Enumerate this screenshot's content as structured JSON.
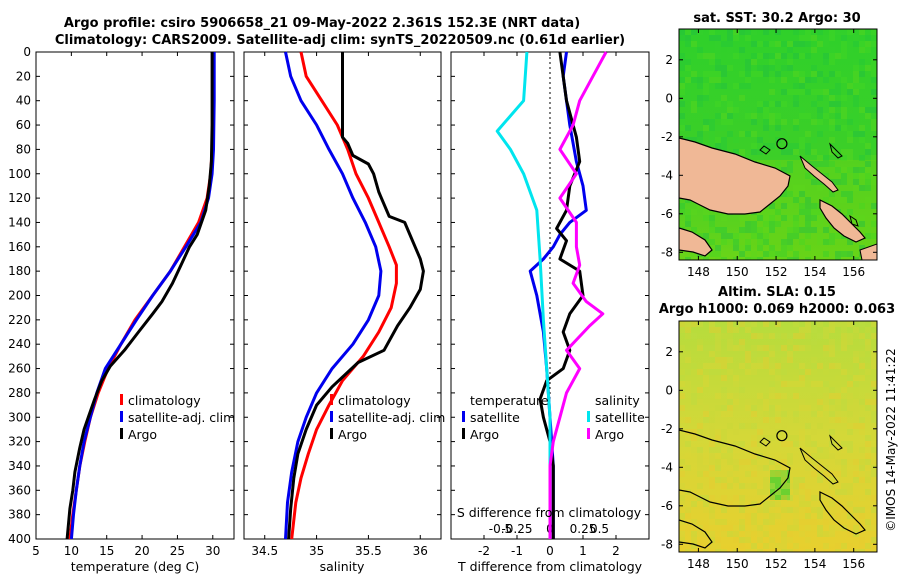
{
  "header": {
    "line1": "Argo profile: csiro 5906658_21 09-May-2022 2.361S 152.3E (NRT data)",
    "line2": "Climatology: CARS2009. Satellite-adj clim: synTS_20220509.nc (0.61d earlier)"
  },
  "credit": "©IMOS 14-May-2022 11:41:22",
  "colors": {
    "climatology": "#ff0000",
    "satellite": "#0000ee",
    "argo": "#000000",
    "s_satellite": "#00e5ee",
    "s_diff": "#ff00ff",
    "land": "#f0b896"
  },
  "chart_data": [
    {
      "id": "temperature",
      "type": "line",
      "xlabel": "temperature (deg C)",
      "xlim": [
        5,
        33
      ],
      "xticks": [
        5,
        10,
        15,
        20,
        25,
        30
      ],
      "ylim": [
        0,
        400
      ],
      "yticks": [
        0,
        20,
        40,
        60,
        80,
        100,
        120,
        140,
        160,
        180,
        200,
        220,
        240,
        260,
        280,
        300,
        320,
        340,
        360,
        380,
        400
      ],
      "legend": [
        "climatology",
        "satellite-adj. clim",
        "Argo"
      ],
      "series": [
        {
          "name": "climatology",
          "color": "#ff0000",
          "points": [
            [
              30,
              0
            ],
            [
              30,
              40
            ],
            [
              29.9,
              80
            ],
            [
              29.7,
              100
            ],
            [
              29.2,
              120
            ],
            [
              28,
              140
            ],
            [
              26,
              160
            ],
            [
              24,
              180
            ],
            [
              21.5,
              200
            ],
            [
              19,
              220
            ],
            [
              17,
              240
            ],
            [
              15.2,
              260
            ],
            [
              13.8,
              280
            ],
            [
              12.7,
              300
            ],
            [
              11.9,
              320
            ],
            [
              11.2,
              340
            ],
            [
              10.7,
              360
            ],
            [
              10.2,
              380
            ],
            [
              9.8,
              400
            ]
          ]
        },
        {
          "name": "satellite-adj. clim",
          "color": "#0000ee",
          "points": [
            [
              30.2,
              0
            ],
            [
              30.2,
              40
            ],
            [
              30.1,
              80
            ],
            [
              29.9,
              100
            ],
            [
              29.4,
              120
            ],
            [
              28.3,
              140
            ],
            [
              26.2,
              160
            ],
            [
              24,
              180
            ],
            [
              21.5,
              200
            ],
            [
              19.2,
              220
            ],
            [
              17,
              240
            ],
            [
              14.8,
              260
            ],
            [
              13.6,
              280
            ],
            [
              12.7,
              300
            ],
            [
              11.8,
              320
            ],
            [
              11.2,
              340
            ],
            [
              10.7,
              360
            ],
            [
              10.3,
              380
            ],
            [
              10,
              400
            ]
          ]
        },
        {
          "name": "Argo",
          "color": "#000000",
          "points": [
            [
              29.9,
              0
            ],
            [
              29.9,
              60
            ],
            [
              29.8,
              90
            ],
            [
              29.5,
              110
            ],
            [
              29,
              130
            ],
            [
              27.8,
              150
            ],
            [
              26.7,
              160
            ],
            [
              25.5,
              175
            ],
            [
              24.3,
              190
            ],
            [
              22.8,
              205
            ],
            [
              21.5,
              215
            ],
            [
              19.5,
              230
            ],
            [
              17.5,
              245
            ],
            [
              15.5,
              258
            ],
            [
              14.3,
              270
            ],
            [
              13.3,
              285
            ],
            [
              12.4,
              300
            ],
            [
              11.8,
              310
            ],
            [
              11.2,
              325
            ],
            [
              10.5,
              345
            ],
            [
              10.2,
              360
            ],
            [
              9.8,
              375
            ],
            [
              9.4,
              400
            ]
          ]
        }
      ]
    },
    {
      "id": "salinity",
      "type": "line",
      "xlabel": "salinity",
      "xlim": [
        34.3,
        36.2
      ],
      "xticks": [
        34.5,
        35,
        35.5,
        36
      ],
      "ylim": [
        0,
        400
      ],
      "legend": [
        "climatology",
        "satellite-adj. clim",
        "Argo"
      ],
      "series": [
        {
          "name": "climatology",
          "color": "#ff0000",
          "points": [
            [
              34.85,
              0
            ],
            [
              34.9,
              20
            ],
            [
              35.05,
              40
            ],
            [
              35.2,
              60
            ],
            [
              35.3,
              80
            ],
            [
              35.38,
              100
            ],
            [
              35.5,
              120
            ],
            [
              35.6,
              140
            ],
            [
              35.7,
              160
            ],
            [
              35.77,
              175
            ],
            [
              35.77,
              190
            ],
            [
              35.72,
              210
            ],
            [
              35.6,
              230
            ],
            [
              35.45,
              250
            ],
            [
              35.25,
              270
            ],
            [
              35.12,
              290
            ],
            [
              35.0,
              310
            ],
            [
              34.92,
              330
            ],
            [
              34.85,
              350
            ],
            [
              34.8,
              370
            ],
            [
              34.76,
              400
            ]
          ]
        },
        {
          "name": "satellite-adj. clim",
          "color": "#0000ee",
          "points": [
            [
              34.7,
              0
            ],
            [
              34.75,
              20
            ],
            [
              34.85,
              40
            ],
            [
              35.0,
              60
            ],
            [
              35.12,
              80
            ],
            [
              35.25,
              100
            ],
            [
              35.35,
              120
            ],
            [
              35.47,
              140
            ],
            [
              35.57,
              160
            ],
            [
              35.62,
              180
            ],
            [
              35.6,
              200
            ],
            [
              35.5,
              220
            ],
            [
              35.35,
              240
            ],
            [
              35.15,
              260
            ],
            [
              35.0,
              280
            ],
            [
              34.9,
              300
            ],
            [
              34.82,
              320
            ],
            [
              34.76,
              345
            ],
            [
              34.72,
              370
            ],
            [
              34.7,
              400
            ]
          ]
        },
        {
          "name": "Argo",
          "color": "#000000",
          "points": [
            [
              35.25,
              0
            ],
            [
              35.25,
              70
            ],
            [
              35.3,
              75
            ],
            [
              35.35,
              85
            ],
            [
              35.5,
              92
            ],
            [
              35.55,
              100
            ],
            [
              35.6,
              115
            ],
            [
              35.7,
              135
            ],
            [
              35.85,
              140
            ],
            [
              35.9,
              150
            ],
            [
              35.95,
              160
            ],
            [
              36.0,
              170
            ],
            [
              36.03,
              180
            ],
            [
              36.0,
              195
            ],
            [
              35.9,
              210
            ],
            [
              35.78,
              225
            ],
            [
              35.65,
              245
            ],
            [
              35.4,
              255
            ],
            [
              35.15,
              275
            ],
            [
              35.0,
              290
            ],
            [
              34.9,
              310
            ],
            [
              34.82,
              330
            ],
            [
              34.78,
              350
            ],
            [
              34.75,
              375
            ],
            [
              34.73,
              400
            ]
          ]
        }
      ]
    },
    {
      "id": "differences",
      "type": "line",
      "xlabel": "T difference from climatology",
      "xlabel_top": "S difference from climatology",
      "xlim": [
        -3,
        3
      ],
      "xticks": [
        -2,
        -1,
        0,
        1,
        2
      ],
      "s_ticks": [
        {
          "label": "-0.5",
          "t": -1.5
        },
        {
          "label": "-0.25",
          "t": -1
        },
        {
          "label": "0",
          "t": 0
        },
        {
          "label": "0.25",
          "t": 1
        },
        {
          "label": "0.5",
          "t": 1.5
        }
      ],
      "ylim": [
        0,
        400
      ],
      "legend_t_title": "temperature",
      "legend_s_title": "salinity",
      "legend_t": [
        "satellite",
        "Argo"
      ],
      "legend_s": [
        "satellite",
        "Argo"
      ],
      "series": [
        {
          "name": "T satellite",
          "color": "#0000ee",
          "points": [
            [
              0.5,
              0
            ],
            [
              0.4,
              20
            ],
            [
              0.6,
              60
            ],
            [
              0.8,
              90
            ],
            [
              1.0,
              110
            ],
            [
              1.1,
              130
            ],
            [
              0.6,
              140
            ],
            [
              0.3,
              150
            ],
            [
              0.1,
              160
            ],
            [
              -0.2,
              170
            ],
            [
              -0.6,
              180
            ],
            [
              -0.4,
              200
            ],
            [
              -0.2,
              230
            ],
            [
              -0.1,
              260
            ],
            [
              0,
              300
            ],
            [
              0.1,
              340
            ],
            [
              0.1,
              400
            ]
          ]
        },
        {
          "name": "T Argo",
          "color": "#000000",
          "points": [
            [
              0.3,
              0
            ],
            [
              0.5,
              40
            ],
            [
              0.8,
              70
            ],
            [
              0.9,
              90
            ],
            [
              0.6,
              110
            ],
            [
              0.5,
              130
            ],
            [
              0.2,
              145
            ],
            [
              0.5,
              155
            ],
            [
              0.3,
              170
            ],
            [
              0.9,
              180
            ],
            [
              1.0,
              200
            ],
            [
              0.6,
              215
            ],
            [
              0.4,
              230
            ],
            [
              0.6,
              245
            ],
            [
              0.4,
              260
            ],
            [
              -0.1,
              270
            ],
            [
              -0.3,
              285
            ],
            [
              -0.2,
              300
            ],
            [
              0,
              320
            ],
            [
              0.1,
              340
            ],
            [
              0.1,
              400
            ]
          ]
        },
        {
          "name": "S satellite",
          "color": "#00e5ee",
          "points": [
            [
              -0.7,
              0
            ],
            [
              -0.8,
              40
            ],
            [
              -1.6,
              65
            ],
            [
              -1.2,
              80
            ],
            [
              -0.8,
              100
            ],
            [
              -0.4,
              130
            ],
            [
              -0.3,
              170
            ],
            [
              -0.2,
              220
            ],
            [
              -0.1,
              260
            ],
            [
              0,
              300
            ],
            [
              0,
              340
            ],
            [
              0,
              400
            ]
          ]
        },
        {
          "name": "S Argo",
          "color": "#ff00ff",
          "points": [
            [
              1.7,
              0
            ],
            [
              1.3,
              20
            ],
            [
              0.9,
              40
            ],
            [
              0.7,
              60
            ],
            [
              0.3,
              80
            ],
            [
              0.8,
              100
            ],
            [
              0.3,
              120
            ],
            [
              0.8,
              140
            ],
            [
              0.8,
              160
            ],
            [
              0.9,
              175
            ],
            [
              0.7,
              190
            ],
            [
              1.1,
              205
            ],
            [
              1.6,
              215
            ],
            [
              1.2,
              225
            ],
            [
              0.5,
              245
            ],
            [
              0.9,
              260
            ],
            [
              0.5,
              280
            ],
            [
              0.3,
              300
            ],
            [
              0.1,
              320
            ],
            [
              0,
              340
            ],
            [
              0,
              400
            ]
          ]
        }
      ]
    },
    {
      "id": "sst_map",
      "type": "heatmap",
      "title": "sat. SST: 30.2 Argo: 30",
      "xticks": [
        148,
        150,
        152,
        154,
        156
      ],
      "yticks": [
        2,
        0,
        -2,
        -4,
        -6,
        -8
      ],
      "xlim": [
        147,
        157.2
      ],
      "ylim": [
        -8.4,
        3.6
      ],
      "argo_position": [
        152.3,
        -2.361
      ]
    },
    {
      "id": "sla_map",
      "type": "heatmap",
      "title_line1": "Altim. SLA: 0.15",
      "title_line2": "Argo h1000: 0.069 h2000: 0.063",
      "xticks": [
        148,
        150,
        152,
        154,
        156
      ],
      "yticks": [
        2,
        0,
        -2,
        -4,
        -6,
        -8
      ],
      "xlim": [
        147,
        157.2
      ],
      "ylim": [
        -8.4,
        3.6
      ],
      "argo_position": [
        152.3,
        -2.361
      ]
    }
  ]
}
